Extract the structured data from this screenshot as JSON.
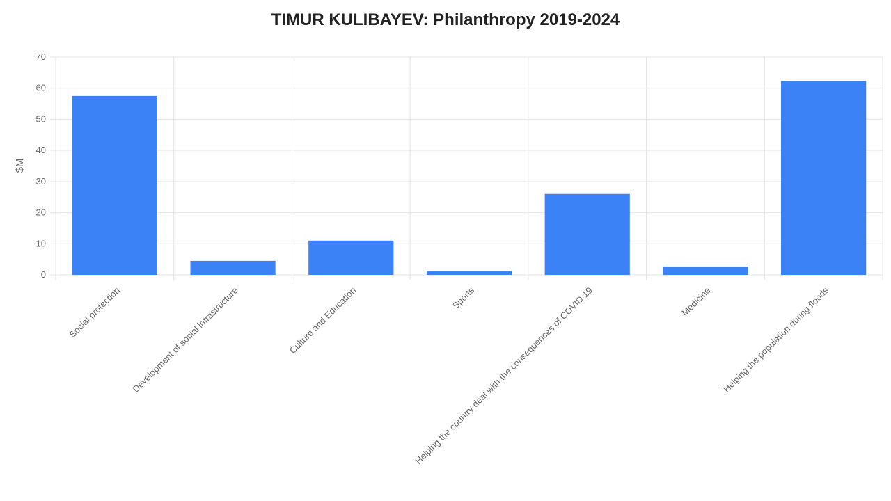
{
  "chart_data": {
    "type": "bar",
    "title": "TIMUR KULIBAYEV: Philanthropy 2019-2024",
    "y_label": "$M",
    "categories": [
      "Social protection",
      "Development of social infrastructure",
      "Culture and Education",
      "Sports",
      "Helping the country deal with the consequences of COVID 19",
      "Medicine",
      "Helping the population during floods"
    ],
    "values": [
      57.5,
      4.5,
      11,
      1.3,
      26,
      2.7,
      62.3
    ],
    "color": "#3b82f6",
    "ylim": [
      0,
      70
    ],
    "yticks": [
      0,
      10,
      20,
      30,
      40,
      50,
      60,
      70
    ],
    "grid": true
  }
}
